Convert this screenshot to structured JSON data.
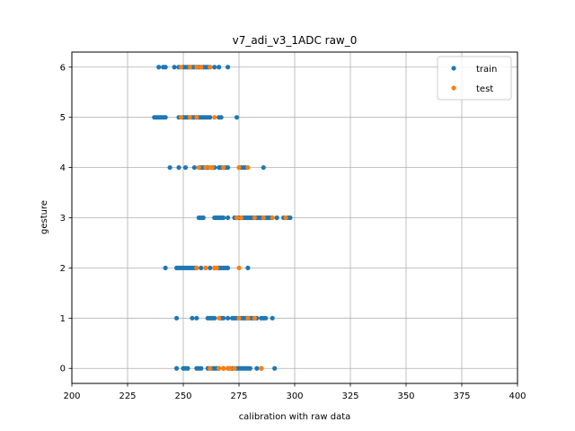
{
  "chart_data": {
    "type": "scatter",
    "title": "v7_adi_v3_1ADC raw_0",
    "xlabel": "calibration with raw data",
    "ylabel": "gesture",
    "xlim": [
      200,
      400
    ],
    "ylim": [
      -0.3,
      6.3
    ],
    "xticks": [
      200,
      225,
      250,
      275,
      300,
      325,
      350,
      375,
      400
    ],
    "yticks": [
      0,
      1,
      2,
      3,
      4,
      5,
      6
    ],
    "grid": true,
    "legend_position": "top-right",
    "series": [
      {
        "name": "train",
        "color": "#1f77b4",
        "points": [
          [
            246,
            6
          ],
          [
            248,
            6
          ],
          [
            250,
            6
          ],
          [
            251,
            6
          ],
          [
            252,
            6
          ],
          [
            253,
            6
          ],
          [
            254,
            6
          ],
          [
            255,
            6
          ],
          [
            256,
            6
          ],
          [
            257,
            6
          ],
          [
            258,
            6
          ],
          [
            259,
            6
          ],
          [
            260,
            6
          ],
          [
            261,
            6
          ],
          [
            262,
            6
          ],
          [
            264,
            6
          ],
          [
            266,
            6
          ],
          [
            270,
            6
          ],
          [
            239,
            6
          ],
          [
            241,
            6
          ],
          [
            242,
            6
          ],
          [
            237,
            5
          ],
          [
            238,
            5
          ],
          [
            239,
            5
          ],
          [
            240,
            5
          ],
          [
            241,
            5
          ],
          [
            242,
            5
          ],
          [
            248,
            5
          ],
          [
            250,
            5
          ],
          [
            251,
            5
          ],
          [
            252,
            5
          ],
          [
            254,
            5
          ],
          [
            255,
            5
          ],
          [
            256,
            5
          ],
          [
            257,
            5
          ],
          [
            258,
            5
          ],
          [
            259,
            5
          ],
          [
            260,
            5
          ],
          [
            261,
            5
          ],
          [
            262,
            5
          ],
          [
            266,
            5
          ],
          [
            267,
            5
          ],
          [
            274,
            5
          ],
          [
            244,
            4
          ],
          [
            248,
            4
          ],
          [
            251,
            4
          ],
          [
            255,
            4
          ],
          [
            257,
            4
          ],
          [
            258,
            4
          ],
          [
            259,
            4
          ],
          [
            260,
            4
          ],
          [
            261,
            4
          ],
          [
            263,
            4
          ],
          [
            264,
            4
          ],
          [
            266,
            4
          ],
          [
            267,
            4
          ],
          [
            268,
            4
          ],
          [
            269,
            4
          ],
          [
            270,
            4
          ],
          [
            275,
            4
          ],
          [
            276,
            4
          ],
          [
            277,
            4
          ],
          [
            278,
            4
          ],
          [
            286,
            4
          ],
          [
            257,
            3
          ],
          [
            258,
            3
          ],
          [
            259,
            3
          ],
          [
            264,
            3
          ],
          [
            265,
            3
          ],
          [
            266,
            3
          ],
          [
            267,
            3
          ],
          [
            268,
            3
          ],
          [
            270,
            3
          ],
          [
            273,
            3
          ],
          [
            274,
            3
          ],
          [
            275,
            3
          ],
          [
            276,
            3
          ],
          [
            277,
            3
          ],
          [
            278,
            3
          ],
          [
            279,
            3
          ],
          [
            280,
            3
          ],
          [
            281,
            3
          ],
          [
            282,
            3
          ],
          [
            283,
            3
          ],
          [
            284,
            3
          ],
          [
            285,
            3
          ],
          [
            287,
            3
          ],
          [
            288,
            3
          ],
          [
            289,
            3
          ],
          [
            290,
            3
          ],
          [
            292,
            3
          ],
          [
            295,
            3
          ],
          [
            297,
            3
          ],
          [
            298,
            3
          ],
          [
            242,
            2
          ],
          [
            247,
            2
          ],
          [
            248,
            2
          ],
          [
            249,
            2
          ],
          [
            250,
            2
          ],
          [
            251,
            2
          ],
          [
            252,
            2
          ],
          [
            253,
            2
          ],
          [
            254,
            2
          ],
          [
            255,
            2
          ],
          [
            256,
            2
          ],
          [
            258,
            2
          ],
          [
            260,
            2
          ],
          [
            262,
            2
          ],
          [
            264,
            2
          ],
          [
            266,
            2
          ],
          [
            267,
            2
          ],
          [
            268,
            2
          ],
          [
            269,
            2
          ],
          [
            270,
            2
          ],
          [
            279,
            2
          ],
          [
            247,
            1
          ],
          [
            254,
            1
          ],
          [
            256,
            1
          ],
          [
            261,
            1
          ],
          [
            262,
            1
          ],
          [
            263,
            1
          ],
          [
            264,
            1
          ],
          [
            267,
            1
          ],
          [
            268,
            1
          ],
          [
            270,
            1
          ],
          [
            272,
            1
          ],
          [
            273,
            1
          ],
          [
            274,
            1
          ],
          [
            276,
            1
          ],
          [
            277,
            1
          ],
          [
            278,
            1
          ],
          [
            279,
            1
          ],
          [
            280,
            1
          ],
          [
            281,
            1
          ],
          [
            282,
            1
          ],
          [
            283,
            1
          ],
          [
            285,
            1
          ],
          [
            286,
            1
          ],
          [
            287,
            1
          ],
          [
            290,
            1
          ],
          [
            247,
            0
          ],
          [
            250,
            0
          ],
          [
            251,
            0
          ],
          [
            252,
            0
          ],
          [
            256,
            0
          ],
          [
            257,
            0
          ],
          [
            258,
            0
          ],
          [
            261,
            0
          ],
          [
            262,
            0
          ],
          [
            263,
            0
          ],
          [
            264,
            0
          ],
          [
            265,
            0
          ],
          [
            266,
            0
          ],
          [
            268,
            0
          ],
          [
            270,
            0
          ],
          [
            271,
            0
          ],
          [
            272,
            0
          ],
          [
            274,
            0
          ],
          [
            275,
            0
          ],
          [
            276,
            0
          ],
          [
            277,
            0
          ],
          [
            278,
            0
          ],
          [
            279,
            0
          ],
          [
            280,
            0
          ],
          [
            283,
            0
          ],
          [
            285,
            0
          ],
          [
            291,
            0
          ]
        ]
      },
      {
        "name": "test",
        "color": "#ff7f0e",
        "points": [
          [
            249,
            6
          ],
          [
            253,
            6
          ],
          [
            256,
            6
          ],
          [
            258,
            6
          ],
          [
            262,
            6
          ],
          [
            249,
            5
          ],
          [
            253,
            5
          ],
          [
            256,
            5
          ],
          [
            264,
            5
          ],
          [
            257,
            4
          ],
          [
            260,
            4
          ],
          [
            262,
            4
          ],
          [
            263,
            4
          ],
          [
            268,
            4
          ],
          [
            275,
            4
          ],
          [
            279,
            4
          ],
          [
            274,
            3
          ],
          [
            276,
            3
          ],
          [
            282,
            3
          ],
          [
            286,
            3
          ],
          [
            290,
            3
          ],
          [
            296,
            3
          ],
          [
            256,
            2
          ],
          [
            260,
            2
          ],
          [
            264,
            2
          ],
          [
            265,
            2
          ],
          [
            275,
            2
          ],
          [
            266,
            1
          ],
          [
            275,
            1
          ],
          [
            279,
            1
          ],
          [
            282,
            1
          ],
          [
            262,
            0
          ],
          [
            266,
            0
          ],
          [
            268,
            0
          ],
          [
            270,
            0
          ],
          [
            271,
            0
          ],
          [
            273,
            0
          ],
          [
            285,
            0
          ]
        ]
      }
    ]
  }
}
